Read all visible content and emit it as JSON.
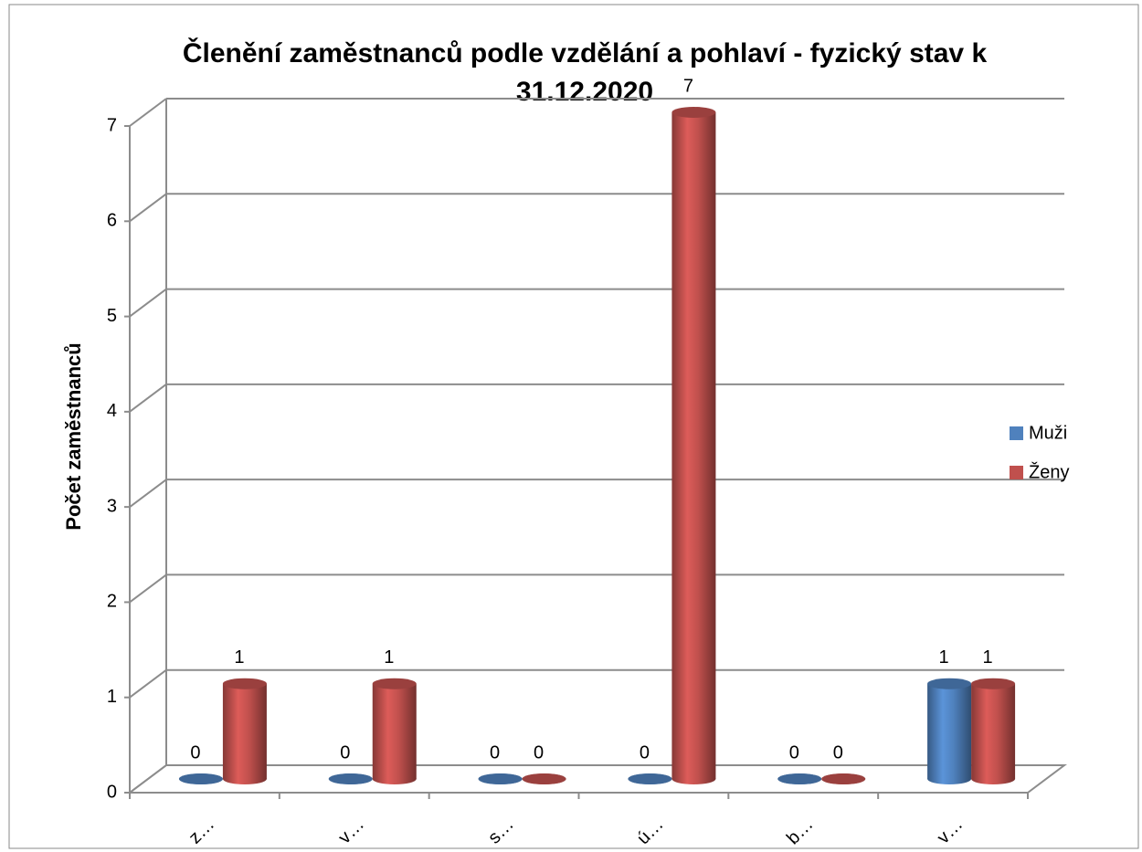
{
  "chart_data": {
    "type": "bar3d",
    "title": "Členění zaměstnanců podle vzdělání a pohlaví - fyzický stav k 31.12.2020",
    "y_label": "Počet zaměstnanců",
    "categories": [
      "z…",
      "v…",
      "s…",
      "ú…",
      "b…",
      "v…"
    ],
    "series": [
      {
        "name": "Muži",
        "color": "#4f81bd",
        "values": [
          0,
          0,
          0,
          0,
          0,
          1
        ]
      },
      {
        "name": "Ženy",
        "color": "#c0504d",
        "values": [
          1,
          1,
          0,
          7,
          0,
          1
        ]
      }
    ],
    "ylim": [
      0,
      7
    ],
    "yticks": [
      0,
      1,
      2,
      3,
      4,
      5,
      6,
      7
    ],
    "grid": true,
    "legend": "right"
  }
}
